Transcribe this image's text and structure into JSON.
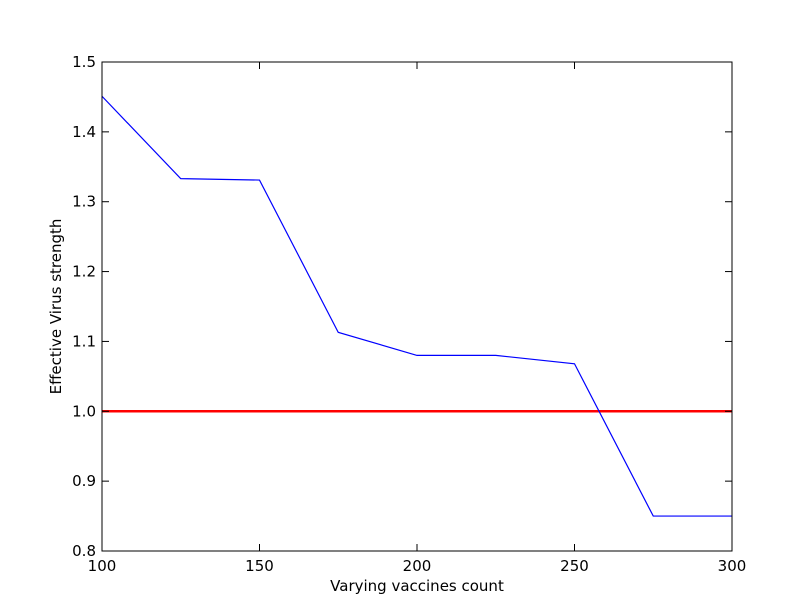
{
  "chart_data": {
    "type": "line",
    "title": "",
    "xlabel": "Varying vaccines count",
    "ylabel": "Effective Virus strength",
    "xlim": [
      100,
      300
    ],
    "ylim": [
      0.8,
      1.5
    ],
    "xticks": [
      100,
      150,
      200,
      250,
      300
    ],
    "yticks": [
      0.8,
      0.9,
      1.0,
      1.1,
      1.2,
      1.3,
      1.4,
      1.5
    ],
    "xtick_labels": [
      "100",
      "150",
      "200",
      "250",
      "300"
    ],
    "ytick_labels": [
      "0.8",
      "0.9",
      "1.0",
      "1.1",
      "1.2",
      "1.3",
      "1.4",
      "1.5"
    ],
    "grid": false,
    "series": [
      {
        "color": "#0000ff",
        "x": [
          100,
          125,
          150,
          175,
          200,
          225,
          250,
          275,
          300
        ],
        "values": [
          1.451,
          1.333,
          1.331,
          1.113,
          1.08,
          1.08,
          1.068,
          0.85,
          0.85
        ]
      }
    ],
    "reference_line": {
      "y": 1.0,
      "color": "#ff0000"
    }
  }
}
